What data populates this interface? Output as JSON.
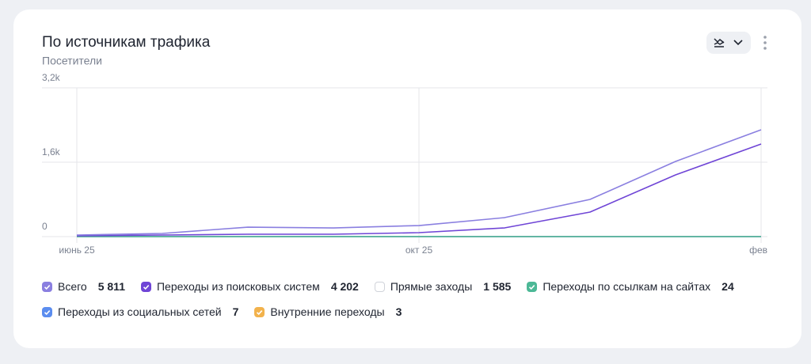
{
  "chart_data": {
    "type": "line",
    "title": "По источникам трафика",
    "subtitle": "Посетители",
    "categories": [
      "июнь 25",
      null,
      null,
      null,
      "окт 25",
      null,
      null,
      null,
      "фев"
    ],
    "ylim": [
      0,
      3200
    ],
    "yticks": [
      0,
      {
        "value": 1600,
        "label": "1,6k"
      },
      {
        "value": 3200,
        "label": "3,2k"
      }
    ],
    "grid": true,
    "series": [
      {
        "name": "Всего",
        "total": "5 811",
        "checked": true,
        "color": "#8a7fe0",
        "values": [
          34,
          68,
          204,
          187,
          238,
          408,
          800,
          1617,
          2298
        ]
      },
      {
        "name": "Переходы из поисковых систем",
        "total": "4 202",
        "checked": true,
        "color": "#6f45d6",
        "values": [
          17,
          34,
          51,
          51,
          85,
          187,
          528,
          1328,
          1991
        ]
      },
      {
        "name": "Прямые заходы",
        "total": "1 585",
        "checked": false,
        "color": "#ffffff"
      },
      {
        "name": "Переходы по ссылкам на сайтах",
        "total": "24",
        "checked": true,
        "color": "#4cb896",
        "values": [
          0,
          0,
          0,
          0,
          0,
          0,
          0,
          0,
          0
        ]
      },
      {
        "name": "Переходы из социальных сетей",
        "total": "7",
        "checked": true,
        "color": "#5b8def",
        "values": [
          0,
          0,
          0,
          0,
          0,
          0,
          0,
          0,
          0
        ]
      },
      {
        "name": "Внутренние переходы",
        "total": "3",
        "checked": true,
        "color": "#f2b24c",
        "values": [
          0,
          0,
          0,
          0,
          0,
          0,
          0,
          0,
          0
        ]
      }
    ]
  }
}
